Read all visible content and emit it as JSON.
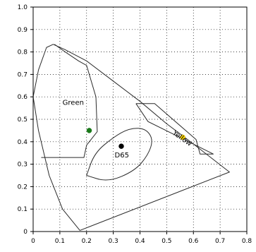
{
  "chart_data": {
    "type": "scatter",
    "title": "",
    "xlabel": "",
    "ylabel": "",
    "xlim": [
      0,
      0.8
    ],
    "ylim": [
      0,
      1.0
    ],
    "grid": true,
    "x_tick_labels": [
      "0",
      "0.1",
      "0.2",
      "0.3",
      "0.4",
      "0.5",
      "0.6",
      "0.7",
      "0.8"
    ],
    "y_tick_labels": [
      "0",
      "0.1",
      "0.2",
      "0.3",
      "0.4",
      "0.5",
      "0.6",
      "0.7",
      "0.8",
      "0.9",
      "1.0"
    ],
    "annotations": [
      "Green",
      "D65",
      "Yellow"
    ],
    "points": [
      {
        "label": "Green",
        "x": 0.21,
        "y": 0.45,
        "color": "#1a7a1a"
      },
      {
        "label": "D65",
        "x": 0.33,
        "y": 0.38,
        "color": "#000000"
      },
      {
        "label": "Yellow",
        "x": 0.56,
        "y": 0.42,
        "color": "#ffd700"
      }
    ],
    "gamut_boundary": [
      [
        0.175,
        0.005
      ],
      [
        0.11,
        0.1
      ],
      [
        0.06,
        0.25
      ],
      [
        0.02,
        0.45
      ],
      [
        0.0,
        0.6
      ],
      [
        0.02,
        0.72
      ],
      [
        0.05,
        0.82
      ],
      [
        0.075,
        0.834
      ],
      [
        0.12,
        0.81
      ],
      [
        0.2,
        0.76
      ],
      [
        0.3,
        0.67
      ],
      [
        0.4,
        0.58
      ],
      [
        0.5,
        0.48
      ],
      [
        0.6,
        0.39
      ],
      [
        0.735,
        0.265
      ],
      [
        0.175,
        0.005
      ]
    ],
    "green_region": [
      [
        0.08,
        0.834
      ],
      [
        0.12,
        0.8
      ],
      [
        0.17,
        0.76
      ],
      [
        0.2,
        0.74
      ],
      [
        0.235,
        0.6
      ],
      [
        0.24,
        0.445
      ],
      [
        0.2,
        0.385
      ],
      [
        0.19,
        0.33
      ],
      [
        0.03,
        0.33
      ]
    ],
    "yellow_region": [
      [
        0.385,
        0.57
      ],
      [
        0.455,
        0.57
      ],
      [
        0.61,
        0.41
      ],
      [
        0.625,
        0.345
      ],
      [
        0.675,
        0.345
      ],
      [
        0.43,
        0.49
      ],
      [
        0.385,
        0.57
      ]
    ],
    "white_region": [
      [
        0.2,
        0.25
      ],
      [
        0.23,
        0.35
      ],
      [
        0.3,
        0.42
      ],
      [
        0.36,
        0.46
      ],
      [
        0.42,
        0.46
      ],
      [
        0.45,
        0.41
      ],
      [
        0.43,
        0.34
      ],
      [
        0.38,
        0.27
      ],
      [
        0.28,
        0.22
      ],
      [
        0.2,
        0.25
      ]
    ],
    "colors": {
      "axis": "#000000",
      "grid": "#000000",
      "boundary": "#2b2b2b"
    }
  }
}
